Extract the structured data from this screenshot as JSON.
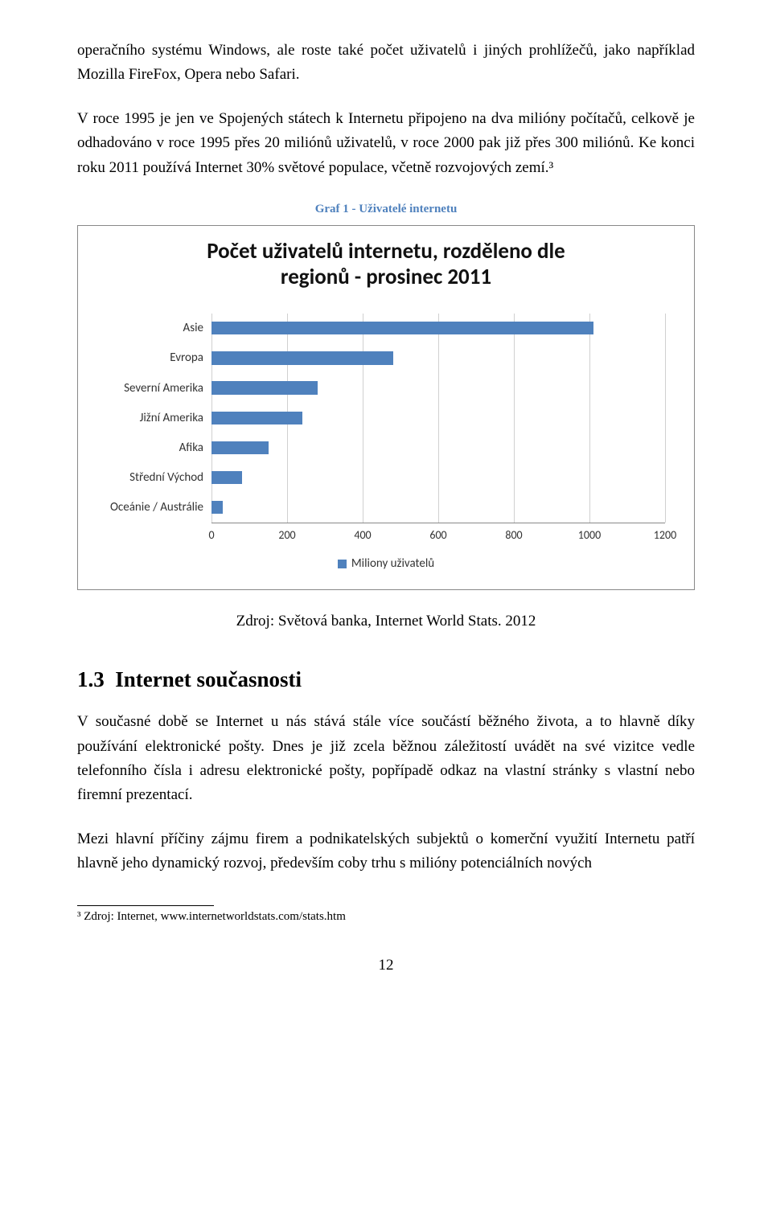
{
  "para1": "operačního systému Windows, ale roste také počet uživatelů i jiných prohlížečů, jako například Mozilla FireFox, Opera nebo Safari.",
  "para2": "V roce 1995 je jen ve Spojených státech k Internetu připojeno na dva milióny počítačů, celkově je odhadováno v roce 1995 přes 20 miliónů uživatelů, v roce 2000 pak již přes 300 miliónů. Ke konci roku 2011 používá Internet 30% světové populace, včetně rozvojových zemí.³",
  "chart": {
    "caption": "Graf 1 - Uživatelé internetu",
    "title_l1": "Počet uživatelů internetu, rozděleno dle",
    "title_l2": "regionů - prosinec 2011",
    "type": "bar-horizontal",
    "bar_color": "#4f81bd",
    "grid_color": "#d0d0d0",
    "axis_color": "#888888",
    "background_color": "#ffffff",
    "xlim": [
      0,
      1200
    ],
    "xtick_step": 200,
    "xticks": [
      "0",
      "200",
      "400",
      "600",
      "800",
      "1000",
      "1200"
    ],
    "series": [
      {
        "label": "Asie",
        "value": 1010
      },
      {
        "label": "Evropa",
        "value": 480
      },
      {
        "label": "Severní Amerika",
        "value": 280
      },
      {
        "label": "Jižní Amerika",
        "value": 240
      },
      {
        "label": "Afika",
        "value": 150
      },
      {
        "label": "Střední Východ",
        "value": 80
      },
      {
        "label": "Oceánie / Austrálie",
        "value": 30
      }
    ],
    "legend_label": "Miliony uživatelů"
  },
  "source_line": "Zdroj: Světová banka, Internet World Stats. 2012",
  "section": {
    "number": "1.3",
    "title": "Internet současnosti"
  },
  "para3": "V současné době se Internet u nás stává stále více součástí běžného života, a to hlavně díky používání elektronické pošty. Dnes je již zcela běžnou záležitostí uvádět na své vizitce vedle telefonního čísla i adresu elektronické pošty, popřípadě odkaz na vlastní stránky s vlastní nebo firemní prezentací.",
  "para4": "Mezi hlavní příčiny zájmu firem a podnikatelských subjektů o komerční využití Internetu patří hlavně jeho dynamický rozvoj, především coby trhu s milióny potenciálních nových",
  "footnote": "³ Zdroj: Internet, www.internetworldstats.com/stats.htm",
  "page_number": "12"
}
